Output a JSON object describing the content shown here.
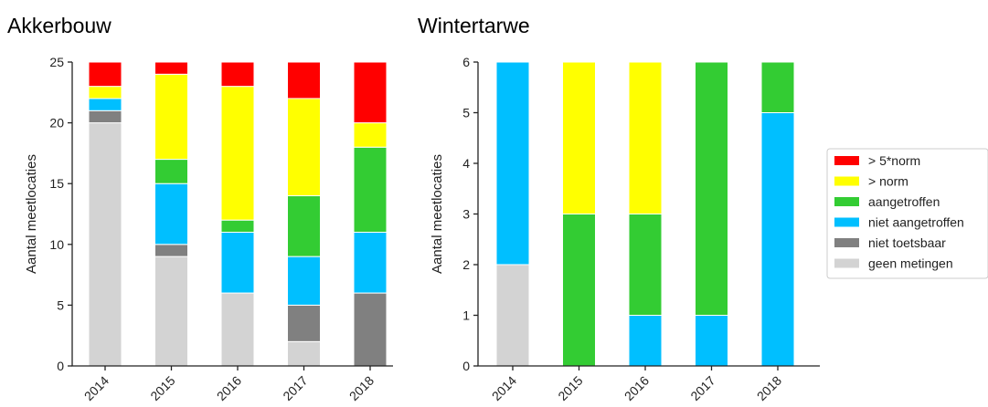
{
  "series_colors": {
    "> 5*norm": "#ff0000",
    "> norm": "#ffff00",
    "aangetroffen": "#33cc33",
    "niet aangetroffen": "#00bfff",
    "niet toetsbaar": "#808080",
    "geen metingen": "#d3d3d3"
  },
  "legend": {
    "placement": "right",
    "entries": [
      "> 5*norm",
      "> norm",
      "aangetroffen",
      "niet aangetroffen",
      "niet toetsbaar",
      "geen metingen"
    ]
  },
  "chart_data": [
    {
      "type": "bar",
      "stacked": true,
      "title": "Akkerbouw",
      "ylabel": "Aantal meetlocaties",
      "xlabel": "",
      "categories": [
        "2014",
        "2015",
        "2016",
        "2017",
        "2018"
      ],
      "ylim": [
        0,
        25
      ],
      "yticks": [
        0,
        5,
        10,
        15,
        20,
        25
      ],
      "grid": false,
      "series": [
        {
          "name": "geen metingen",
          "values": [
            20,
            9,
            6,
            2,
            0
          ]
        },
        {
          "name": "niet toetsbaar",
          "values": [
            1,
            1,
            0,
            3,
            6
          ]
        },
        {
          "name": "niet aangetroffen",
          "values": [
            1,
            5,
            5,
            4,
            5
          ]
        },
        {
          "name": "aangetroffen",
          "values": [
            0,
            2,
            1,
            5,
            7
          ]
        },
        {
          "name": "> norm",
          "values": [
            1,
            7,
            11,
            8,
            2
          ]
        },
        {
          "name": "> 5*norm",
          "values": [
            2,
            1,
            2,
            3,
            5
          ]
        }
      ]
    },
    {
      "type": "bar",
      "stacked": true,
      "title": "Wintertarwe",
      "ylabel": "Aantal meetlocaties",
      "xlabel": "",
      "categories": [
        "2014",
        "2015",
        "2016",
        "2017",
        "2018"
      ],
      "ylim": [
        0,
        6
      ],
      "yticks": [
        0,
        1,
        2,
        3,
        4,
        5,
        6
      ],
      "grid": false,
      "series": [
        {
          "name": "geen metingen",
          "values": [
            2,
            0,
            0,
            0,
            0
          ]
        },
        {
          "name": "niet toetsbaar",
          "values": [
            0,
            0,
            0,
            0,
            0
          ]
        },
        {
          "name": "niet aangetroffen",
          "values": [
            4,
            0,
            1,
            1,
            5
          ]
        },
        {
          "name": "aangetroffen",
          "values": [
            0,
            3,
            2,
            5,
            1
          ]
        },
        {
          "name": "> norm",
          "values": [
            0,
            3,
            3,
            0,
            0
          ]
        },
        {
          "name": "> 5*norm",
          "values": [
            0,
            0,
            0,
            0,
            0
          ]
        }
      ]
    }
  ]
}
